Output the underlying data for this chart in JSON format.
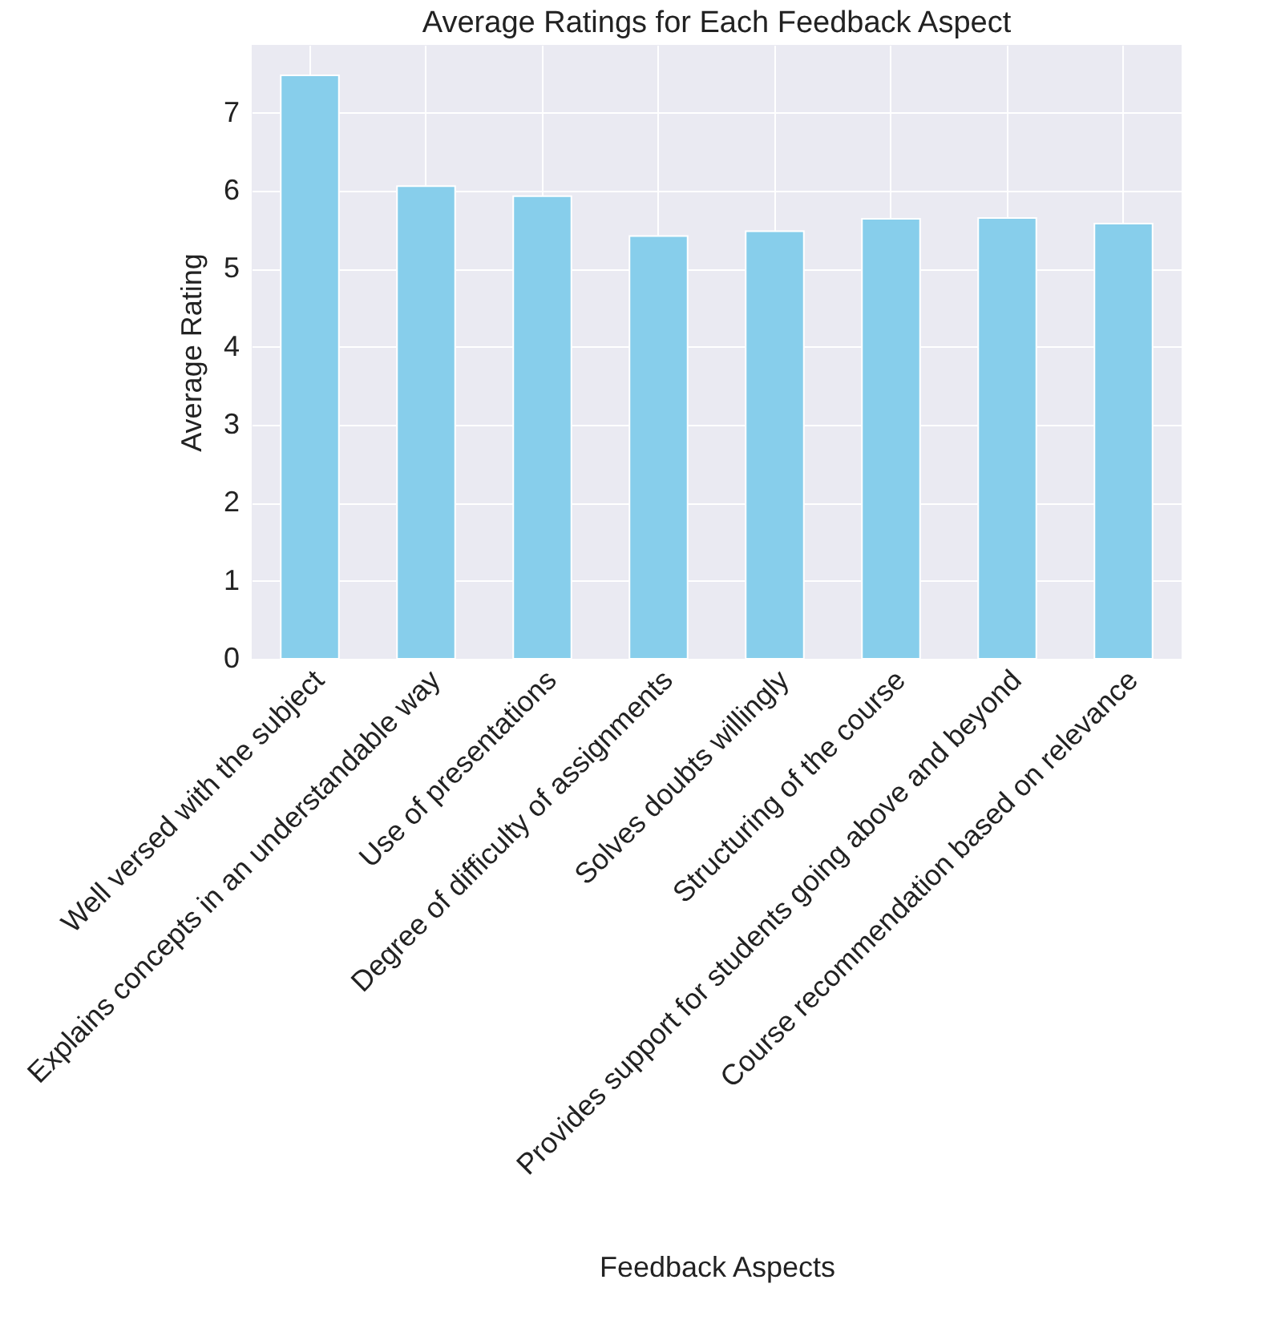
{
  "chart_data": {
    "type": "bar",
    "title": "Average Ratings for Each Feedback Aspect",
    "xlabel": "Feedback Aspects",
    "ylabel": "Average Rating",
    "categories": [
      "Well versed with the subject",
      "Explains concepts in an understandable way",
      "Use of presentations",
      "Degree of difficulty of assignments",
      "Solves doubts willingly",
      "Structuring of the course",
      "Provides support for students going above and beyond",
      "Course recommendation based on relevance"
    ],
    "values": [
      7.48,
      6.06,
      5.93,
      5.42,
      5.48,
      5.64,
      5.65,
      5.58
    ],
    "color": "#87ceeb",
    "ylim": [
      0,
      7.87
    ],
    "yticks": [
      0,
      1,
      2,
      3,
      4,
      5,
      6,
      7
    ],
    "grid": true
  }
}
